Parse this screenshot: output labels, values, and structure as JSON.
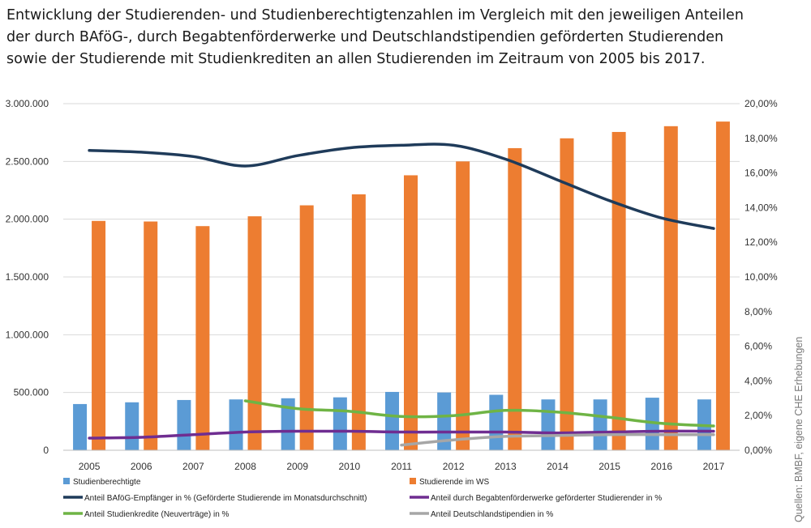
{
  "title_lines": [
    "Entwicklung der Studierenden- und Studienberechtigtenzahlen im Vergleich mit den jeweiligen Anteilen",
    "der durch BAföG-, durch Begabtenförderwerke und Deutschlandstipendien geförderten Studierenden",
    "sowie der Studierende mit Studienkrediten an allen Studierenden im Zeitraum von 2005 bis 2017."
  ],
  "source": "Quellen: BMBF, eigene CHE Erhebungen",
  "colors": {
    "studienberechtigte": "#5b9bd5",
    "studierende": "#ed7d31",
    "bafoeg": "#1f3b5a",
    "begabten": "#6f2d91",
    "kredite": "#6fb445",
    "deutschland": "#a6a6a6",
    "grid": "#d9d9d9"
  },
  "chart_data": {
    "type": "bar",
    "title": "",
    "categories": [
      "2005",
      "2006",
      "2007",
      "2008",
      "2009",
      "2010",
      "2011",
      "2012",
      "2013",
      "2014",
      "2015",
      "2016",
      "2017"
    ],
    "y_left": {
      "min": 0,
      "max": 3000000,
      "ticks": [
        0,
        500000,
        1000000,
        1500000,
        2000000,
        2500000,
        3000000
      ],
      "tick_labels": [
        "0",
        "500.000",
        "1.000.000",
        "1.500.000",
        "2.000.000",
        "2.500.000",
        "3.000.000"
      ]
    },
    "y_right": {
      "min": 0,
      "max": 20,
      "ticks": [
        0,
        2,
        4,
        6,
        8,
        10,
        12,
        14,
        16,
        18,
        20
      ],
      "tick_labels": [
        "0,00%",
        "2,00%",
        "4,00%",
        "6,00%",
        "8,00%",
        "10,00%",
        "12,00%",
        "14,00%",
        "16,00%",
        "18,00%",
        "20,00%"
      ]
    },
    "grid": true,
    "legend_position": "bottom",
    "bar_series": [
      {
        "name": "Studienberechtigte",
        "color_key": "studienberechtigte",
        "values": [
          400000,
          415000,
          435000,
          440000,
          450000,
          458000,
          505000,
          500000,
          480000,
          440000,
          440000,
          455000,
          440000
        ]
      },
      {
        "name": "Studierende im WS",
        "color_key": "studierende",
        "values": [
          1985000,
          1980000,
          1940000,
          2025000,
          2120000,
          2215000,
          2380000,
          2500000,
          2615000,
          2700000,
          2755000,
          2805000,
          2845000
        ]
      }
    ],
    "line_series": [
      {
        "name": "Anteil BAföG-Empfänger in % (Geförderte Studierende im Monatsdurchschnitt)",
        "color_key": "bafoeg",
        "width": 3.5,
        "values": [
          17.3,
          17.2,
          16.95,
          16.4,
          17.0,
          17.45,
          17.6,
          17.6,
          16.8,
          15.6,
          14.4,
          13.4,
          12.8
        ]
      },
      {
        "name": "Anteil durch  Begabtenförderwerke geförderter Studierender in %",
        "color_key": "begabten",
        "width": 3.5,
        "values": [
          0.7,
          0.75,
          0.9,
          1.05,
          1.1,
          1.1,
          1.05,
          1.05,
          1.05,
          1.0,
          1.05,
          1.1,
          1.1
        ]
      },
      {
        "name": "Anteil Studienkredite (Neuverträge) in %",
        "color_key": "kredite",
        "width": 3.5,
        "values": [
          null,
          null,
          null,
          2.85,
          2.4,
          2.25,
          1.95,
          2.0,
          2.3,
          2.2,
          1.9,
          1.55,
          1.4
        ]
      },
      {
        "name": "Anteil Deutschlandstipendien in %",
        "color_key": "deutschland",
        "width": 3.5,
        "values": [
          null,
          null,
          null,
          null,
          null,
          null,
          0.3,
          0.6,
          0.8,
          0.85,
          0.9,
          0.9,
          0.9
        ]
      }
    ]
  }
}
